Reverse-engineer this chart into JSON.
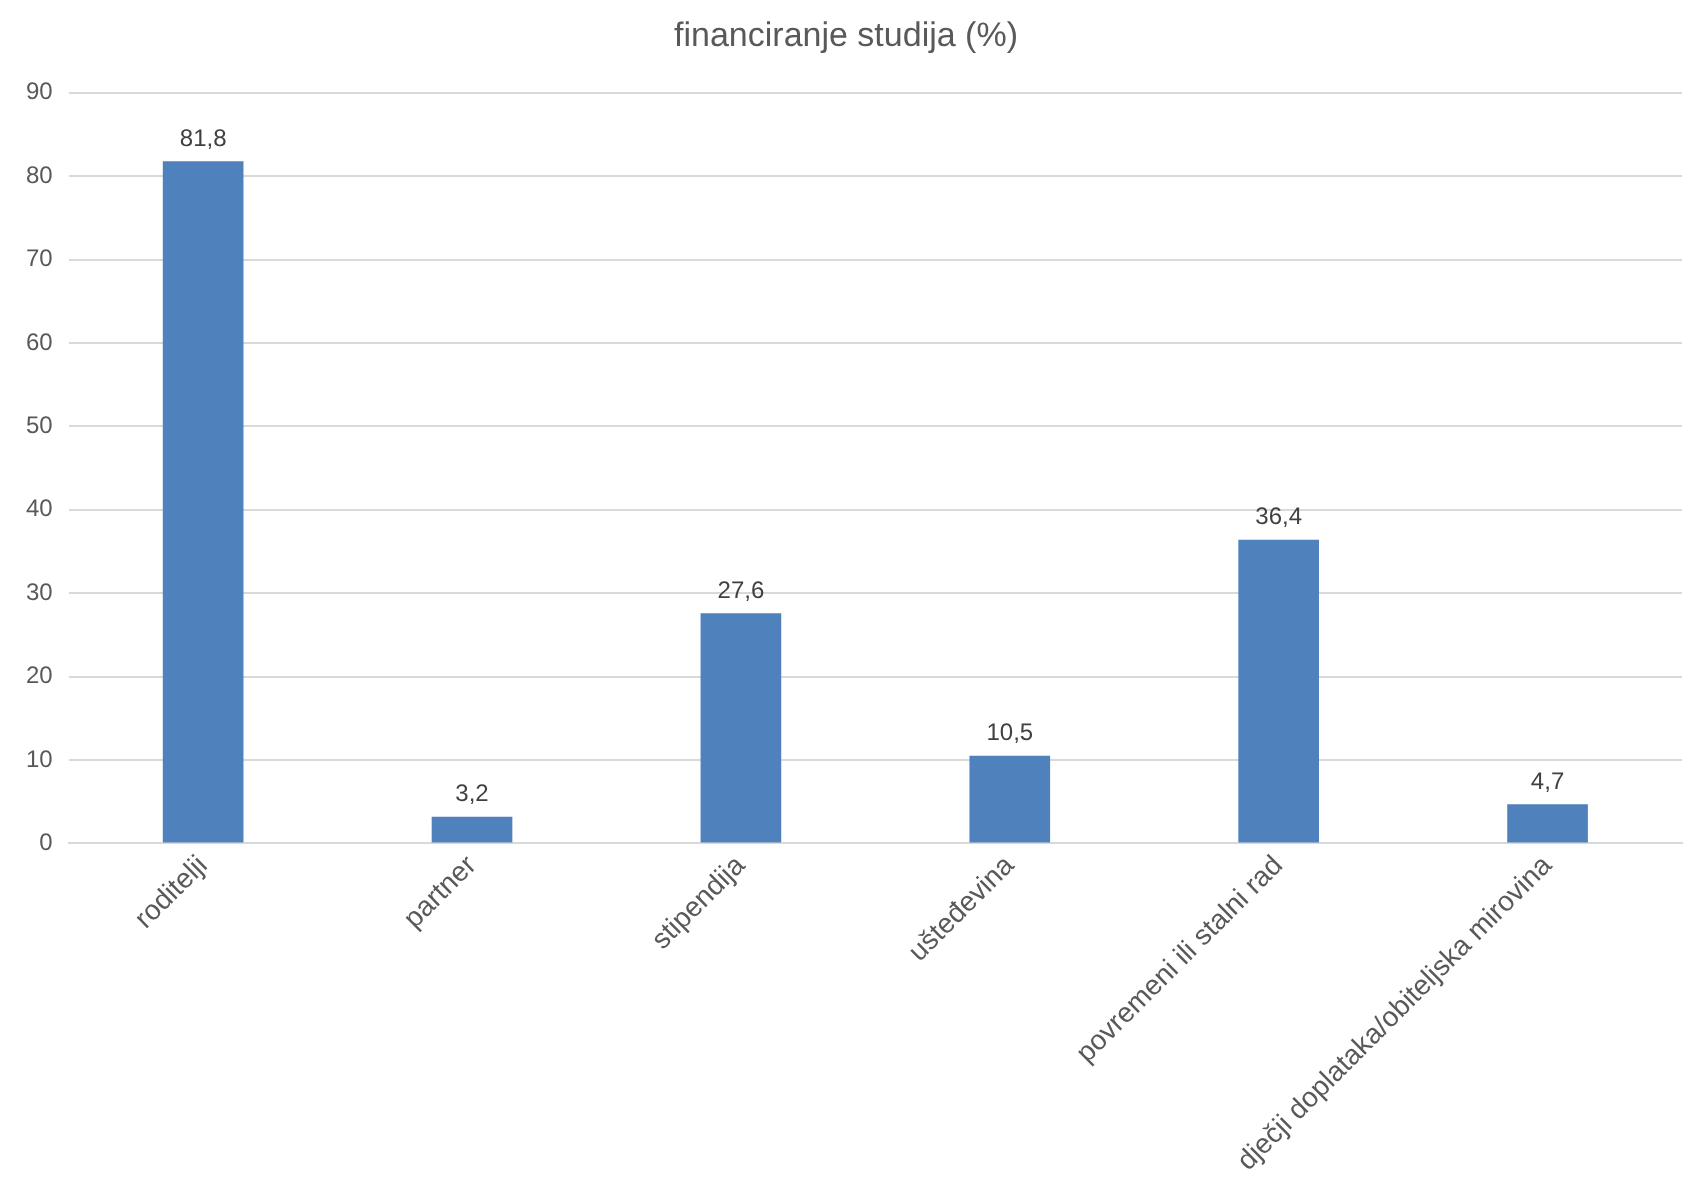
{
  "chart_data": {
    "type": "bar",
    "title": "financiranje studija (%)",
    "categories": [
      "roditelji",
      "partner",
      "stipendija",
      "ušteđevina",
      "povremeni ili stalni rad",
      "dječji doplataka/obiteljska mirovina"
    ],
    "values": [
      81.8,
      3.2,
      27.6,
      10.5,
      36.4,
      4.7
    ],
    "value_labels": [
      "81,8",
      "3,2",
      "27,6",
      "10,5",
      "36,4",
      "4,7"
    ],
    "color": "#4f81bd",
    "ylim": [
      0,
      90
    ],
    "yticks": [
      0,
      10,
      20,
      30,
      40,
      50,
      60,
      70,
      80,
      90
    ],
    "grid": "y",
    "legend": false
  }
}
